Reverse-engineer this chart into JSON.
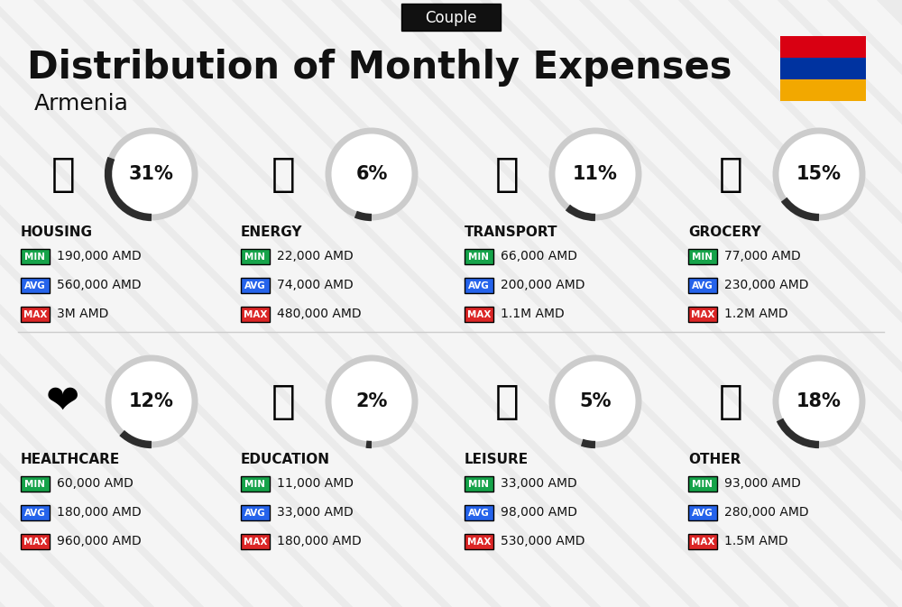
{
  "title": "Distribution of Monthly Expenses",
  "subtitle": "Armenia",
  "tab_label": "Couple",
  "bg_color": "#ebebeb",
  "flag_colors": [
    "#D90012",
    "#0033A0",
    "#F2A800"
  ],
  "categories_row1": [
    {
      "name": "HOUSING",
      "percent": 31,
      "min": "190,000 AMD",
      "avg": "560,000 AMD",
      "max": "3M AMD"
    },
    {
      "name": "ENERGY",
      "percent": 6,
      "min": "22,000 AMD",
      "avg": "74,000 AMD",
      "max": "480,000 AMD"
    },
    {
      "name": "TRANSPORT",
      "percent": 11,
      "min": "66,000 AMD",
      "avg": "200,000 AMD",
      "max": "1.1M AMD"
    },
    {
      "name": "GROCERY",
      "percent": 15,
      "min": "77,000 AMD",
      "avg": "230,000 AMD",
      "max": "1.2M AMD"
    }
  ],
  "categories_row2": [
    {
      "name": "HEALTHCARE",
      "percent": 12,
      "min": "60,000 AMD",
      "avg": "180,000 AMD",
      "max": "960,000 AMD"
    },
    {
      "name": "EDUCATION",
      "percent": 2,
      "min": "11,000 AMD",
      "avg": "33,000 AMD",
      "max": "180,000 AMD"
    },
    {
      "name": "LEISURE",
      "percent": 5,
      "min": "33,000 AMD",
      "avg": "98,000 AMD",
      "max": "530,000 AMD"
    },
    {
      "name": "OTHER",
      "percent": 18,
      "min": "93,000 AMD",
      "avg": "280,000 AMD",
      "max": "1.5M AMD"
    }
  ],
  "min_color": "#16a34a",
  "avg_color": "#2563eb",
  "max_color": "#dc2626",
  "text_color": "#111111",
  "circle_edge": "#cccccc",
  "circle_arc": "#2d2d2d",
  "divider_color": "#cccccc",
  "stripe_color": "#ffffff",
  "tab_bg": "#111111",
  "tab_text": "#ffffff"
}
